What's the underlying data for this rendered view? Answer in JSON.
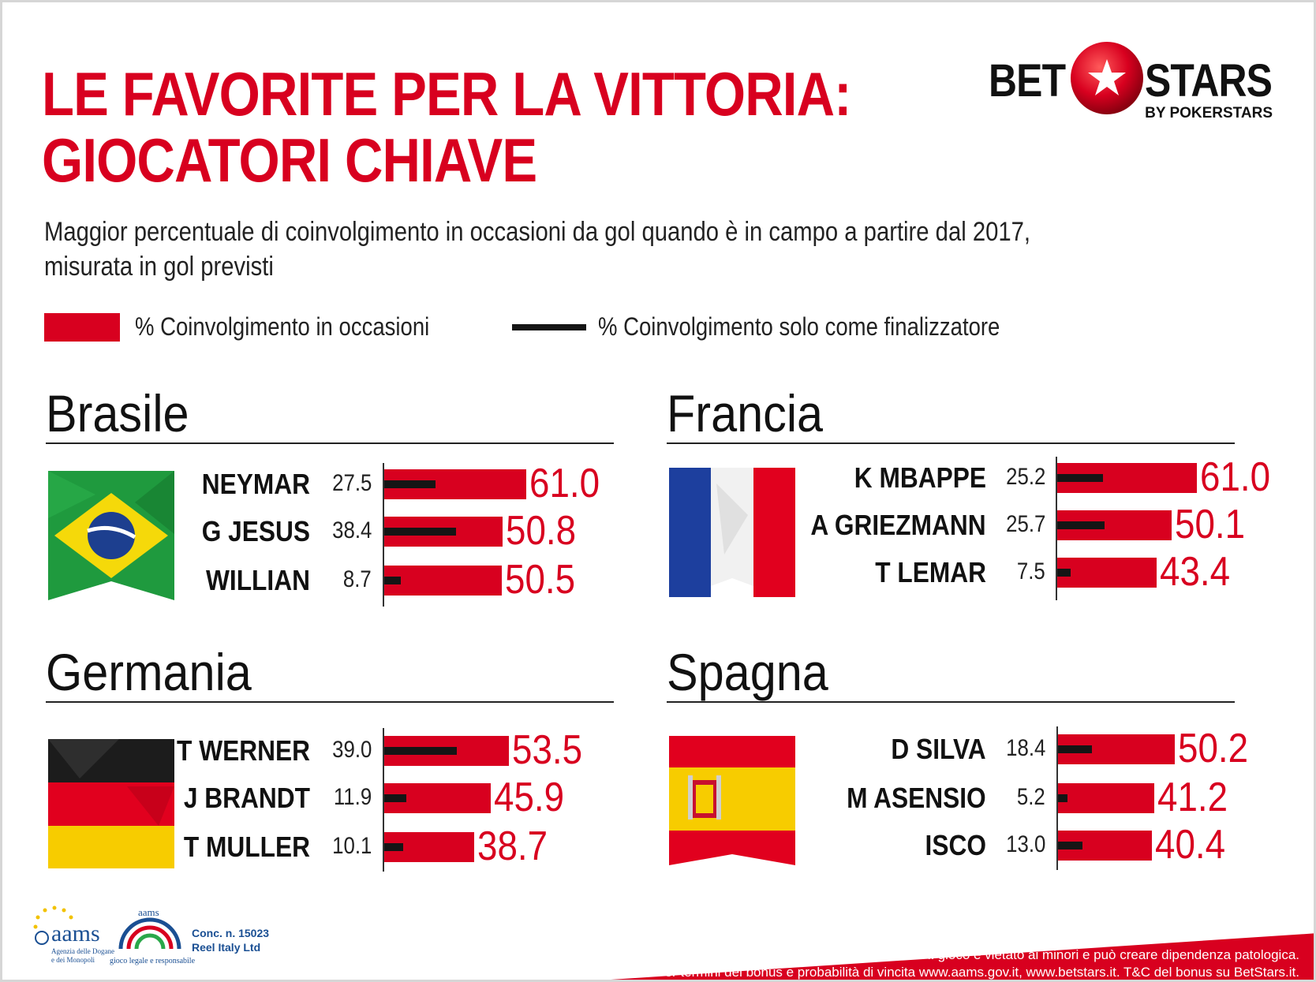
{
  "title": {
    "line1": "LE FAVORITE PER LA VITTORIA:",
    "line2": "GIOCATORI CHIAVE"
  },
  "subtitle": {
    "line1": "Maggior percentuale di coinvolgimento in occasioni da gol quando è in campo a partire dal 2017,",
    "line2": "misurata in gol previsti"
  },
  "legend": {
    "bar_label": "% Coinvolgimento in occasioni",
    "line_label": "% Coinvolgimento solo come finalizzatore"
  },
  "logo": {
    "bet": "BET",
    "stars": "STARS",
    "byline": "BY POKERSTARS"
  },
  "colors": {
    "accent": "#d8001f",
    "finisher": "#151515"
  },
  "chart_data": [
    {
      "type": "bar",
      "title": "Brasile",
      "categories": [
        "NEYMAR",
        "G JESUS",
        "WILLIAN"
      ],
      "series": [
        {
          "name": "% Coinvolgimento in occasioni",
          "values": [
            61.0,
            50.8,
            50.5
          ],
          "labels": [
            "61.0",
            "50.8",
            "50.5"
          ]
        },
        {
          "name": "% Coinvolgimento solo come finalizzatore",
          "values": [
            27.5,
            38.4,
            8.7
          ],
          "labels": [
            "27.5",
            "38.4",
            "8.7"
          ]
        }
      ]
    },
    {
      "type": "bar",
      "title": "Francia",
      "categories": [
        "K MBAPPE",
        "A GRIEZMANN",
        "T LEMAR"
      ],
      "series": [
        {
          "name": "% Coinvolgimento in occasioni",
          "values": [
            61.0,
            50.1,
            43.4
          ],
          "labels": [
            "61.0",
            "50.1",
            "43.4"
          ]
        },
        {
          "name": "% Coinvolgimento solo come finalizzatore",
          "values": [
            25.2,
            25.7,
            7.5
          ],
          "labels": [
            "25.2",
            "25.7",
            "7.5"
          ]
        }
      ]
    },
    {
      "type": "bar",
      "title": "Germania",
      "categories": [
        "T WERNER",
        "J BRANDT",
        "T MULLER"
      ],
      "series": [
        {
          "name": "% Coinvolgimento in occasioni",
          "values": [
            53.5,
            45.9,
            38.7
          ],
          "labels": [
            "53.5",
            "45.9",
            "38.7"
          ]
        },
        {
          "name": "% Coinvolgimento solo come finalizzatore",
          "values": [
            39.0,
            11.9,
            10.1
          ],
          "labels": [
            "39.0",
            "11.9",
            "10.1"
          ]
        }
      ]
    },
    {
      "type": "bar",
      "title": "Spagna",
      "categories": [
        "D SILVA",
        "M ASENSIO",
        "ISCO"
      ],
      "series": [
        {
          "name": "% Coinvolgimento in occasioni",
          "values": [
            50.2,
            41.2,
            40.4
          ],
          "labels": [
            "50.2",
            "41.2",
            "40.4"
          ]
        },
        {
          "name": "% Coinvolgimento solo come finalizzatore",
          "values": [
            18.4,
            5.2,
            13.0
          ],
          "labels": [
            "18.4",
            "5.2",
            "13.0"
          ]
        }
      ]
    }
  ],
  "footer": {
    "aams_word": "aams",
    "aams_sub1": "Agenzia delle Dogane",
    "aams_sub2": "e dei Monopoli",
    "aams2_word": "aams",
    "aams2_sub": "gioco legale e responsabile",
    "conc_line1": "Conc. n.  15023",
    "conc_line2": "Reel Italy Ltd",
    "disclaimer1": "Il gioco è vietato ai minori e può creare dipendenza patologica.",
    "disclaimer2": "Per termini del bonus e probabilità di vincita www.aams.gov.it, www.betstars.it. T&C del bonus su BetStars.it."
  }
}
